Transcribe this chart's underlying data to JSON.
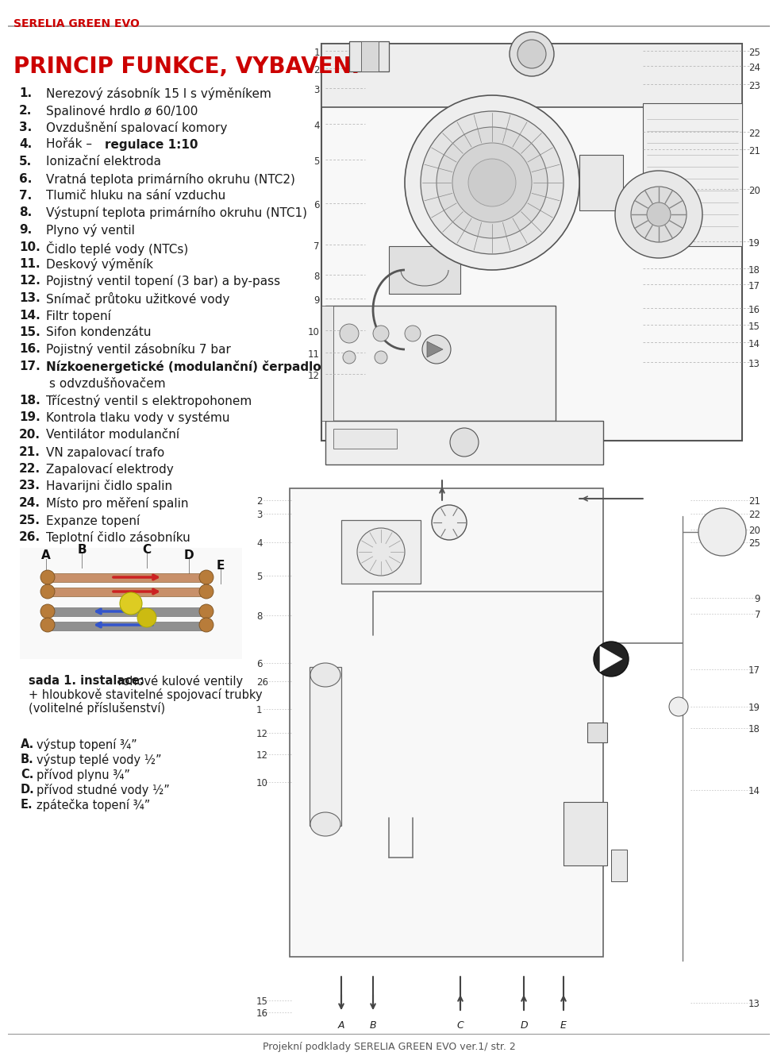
{
  "title_header": "SERELIA GREEN EVO",
  "header_color": "#cc0000",
  "section_title": "PRINCIP FUNKCE, VYBAVENÍ",
  "section_color": "#cc0000",
  "items": [
    {
      "num": "1.",
      "pre": "Nerezový zásobník 15 l s výměníkem",
      "bold": "",
      "is17": false
    },
    {
      "num": "2.",
      "pre": "Spalinové hrdlo ø 60/100",
      "bold": "",
      "is17": false
    },
    {
      "num": "3.",
      "pre": "Ovzdušnění spalovací komory",
      "bold": "",
      "is17": false
    },
    {
      "num": "4.",
      "pre": "Hořák – ",
      "bold": "regulace 1:10",
      "is17": false
    },
    {
      "num": "5.",
      "pre": "Ionizační elektroda",
      "bold": "",
      "is17": false
    },
    {
      "num": "6.",
      "pre": "Vratná teplota primárního okruhu (NTC2)",
      "bold": "",
      "is17": false
    },
    {
      "num": "7.",
      "pre": "Tlumič hluku na sání vzduchu",
      "bold": "",
      "is17": false
    },
    {
      "num": "8.",
      "pre": "Výstupní teplota primárního okruhu (NTC1)",
      "bold": "",
      "is17": false
    },
    {
      "num": "9.",
      "pre": "Plyno vý ventil",
      "bold": "",
      "is17": false
    },
    {
      "num": "10.",
      "pre": "Čidlo teplé vody (NTCs)",
      "bold": "",
      "is17": false
    },
    {
      "num": "11.",
      "pre": "Deskový výměník",
      "bold": "",
      "is17": false
    },
    {
      "num": "12.",
      "pre": "Pojistný ventil topení (3 bar) a by-pass",
      "bold": "",
      "is17": false
    },
    {
      "num": "13.",
      "pre": "Snímač průtoku užitkové vody",
      "bold": "",
      "is17": false
    },
    {
      "num": "14.",
      "pre": "Filtr topení",
      "bold": "",
      "is17": false
    },
    {
      "num": "15.",
      "pre": "Sifon kondenzátu",
      "bold": "",
      "is17": false
    },
    {
      "num": "16.",
      "pre": "Pojistný ventil zásobníku 7 bar",
      "bold": "",
      "is17": false
    },
    {
      "num": "17.",
      "pre": "",
      "bold": "Nízkoenergetické (modulanční) čerpadlo",
      "extra": "s odvzdušňovačem",
      "is17": true
    },
    {
      "num": "18.",
      "pre": "Třícestný ventil s elektropohonem",
      "bold": "",
      "is17": false
    },
    {
      "num": "19.",
      "pre": "Kontrola tlaku vody v systému",
      "bold": "",
      "is17": false
    },
    {
      "num": "20.",
      "pre": "Ventilátor modulanční",
      "bold": "",
      "is17": false
    },
    {
      "num": "21.",
      "pre": "VN zapalovací trafo",
      "bold": "",
      "is17": false
    },
    {
      "num": "22.",
      "pre": "Zapalovací elektrody",
      "bold": "",
      "is17": false
    },
    {
      "num": "23.",
      "pre": "Havarijni čidlo spalin",
      "bold": "",
      "is17": false
    },
    {
      "num": "24.",
      "pre": "Místo pro měření spalin",
      "bold": "",
      "is17": false
    },
    {
      "num": "25.",
      "pre": "Expanze topení",
      "bold": "",
      "is17": false
    },
    {
      "num": "26.",
      "pre": "Teplotní čidlo zásobníku",
      "bold": "",
      "is17": false
    }
  ],
  "sada_bold": "sada 1. instalace:",
  "sada_rest1": " rohové kulové ventily",
  "sada_rest2": "+ hloubkově stavitelné spojovací trubky",
  "sada_rest3": "(volitelné příslušenství)",
  "abcde": [
    {
      "lbl": "A.",
      "txt": "výstup topení ¾”"
    },
    {
      "lbl": "B.",
      "txt": "výstup teplé vody ½”"
    },
    {
      "lbl": "C.",
      "txt": "přívod plynu ¾”"
    },
    {
      "lbl": "D.",
      "txt": "přívod studné vody ½”"
    },
    {
      "lbl": "E.",
      "txt": "zpátečka topení ¾”"
    }
  ],
  "footer_text": "Projekní podklady SERELIA GREEN EVO ver.1/ str. 2",
  "bg_color": "#ffffff",
  "text_color": "#1a1a1a",
  "header_line_color": "#888888",
  "dotted_line_color": "#aaaaaa",
  "diagram_line_color": "#555555"
}
